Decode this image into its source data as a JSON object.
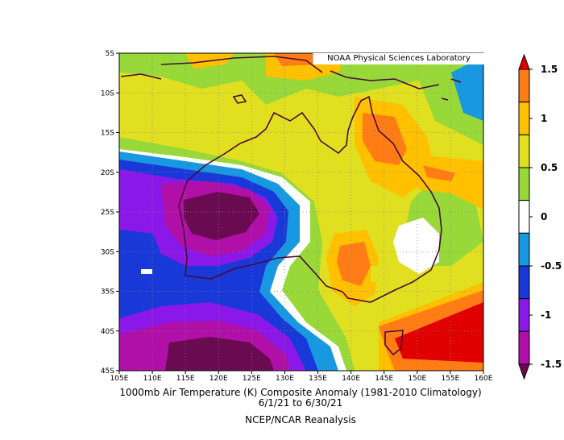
{
  "credit": "NOAA Physical Sciences Laboratory",
  "caption": {
    "line1": "1000mb Air Temperature (K) Composite Anomaly (1981-2010 Climatology)",
    "line2": "6/1/21  to 6/30/21",
    "line3": "NCEP/NCAR Reanalysis"
  },
  "map": {
    "lat_labels": [
      "5S",
      "10S",
      "15S",
      "20S",
      "25S",
      "30S",
      "35S",
      "40S",
      "45S"
    ],
    "lon_labels": [
      "105E",
      "110E",
      "115E",
      "120E",
      "125E",
      "130E",
      "135E",
      "140E",
      "145E",
      "150E",
      "155E",
      "160E"
    ],
    "lat_range": [
      -45,
      -5
    ],
    "lon_range": [
      105,
      160
    ],
    "gridlines": true
  },
  "colorbar": {
    "labels": [
      "1.5",
      "1",
      "0.5",
      "0",
      "-0.5",
      "-1",
      "-1.5"
    ],
    "colors": [
      "#6a0a50",
      "#b010a8",
      "#8a18e8",
      "#1838d8",
      "#1898e0",
      "#ffffff",
      "#98d838",
      "#e0e020",
      "#ffc000",
      "#ff7d14",
      "#e00000"
    ]
  }
}
